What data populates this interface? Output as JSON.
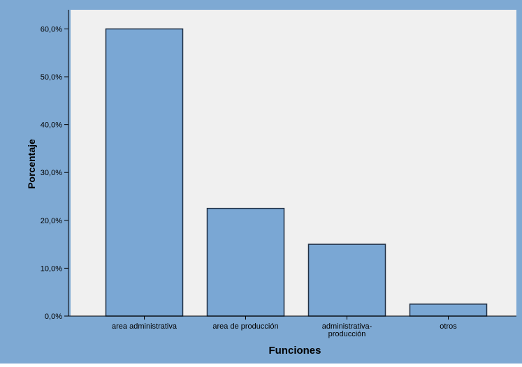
{
  "colors": {
    "frame_background": "#7ea9d3",
    "plot_background": "#f0f0f0",
    "bar_fill": "#7aa7d4",
    "bar_stroke": "#1f2f44",
    "axis": "#000000",
    "text": "#000000"
  },
  "chart_data": {
    "type": "bar",
    "categories": [
      "area administrativa",
      "area de producción",
      "administrativa-\nproducción",
      "otros"
    ],
    "values": [
      60.0,
      22.5,
      15.0,
      2.5
    ],
    "xlabel": "Funciones",
    "ylabel": "Porcentaje",
    "ylim": [
      0,
      64
    ],
    "yticks": [
      0,
      10,
      20,
      30,
      40,
      50,
      60
    ],
    "ytick_labels": [
      "0,0%",
      "10,0%",
      "20,0%",
      "30,0%",
      "40,0%",
      "50,0%",
      "60,0%"
    ],
    "grid": false
  }
}
